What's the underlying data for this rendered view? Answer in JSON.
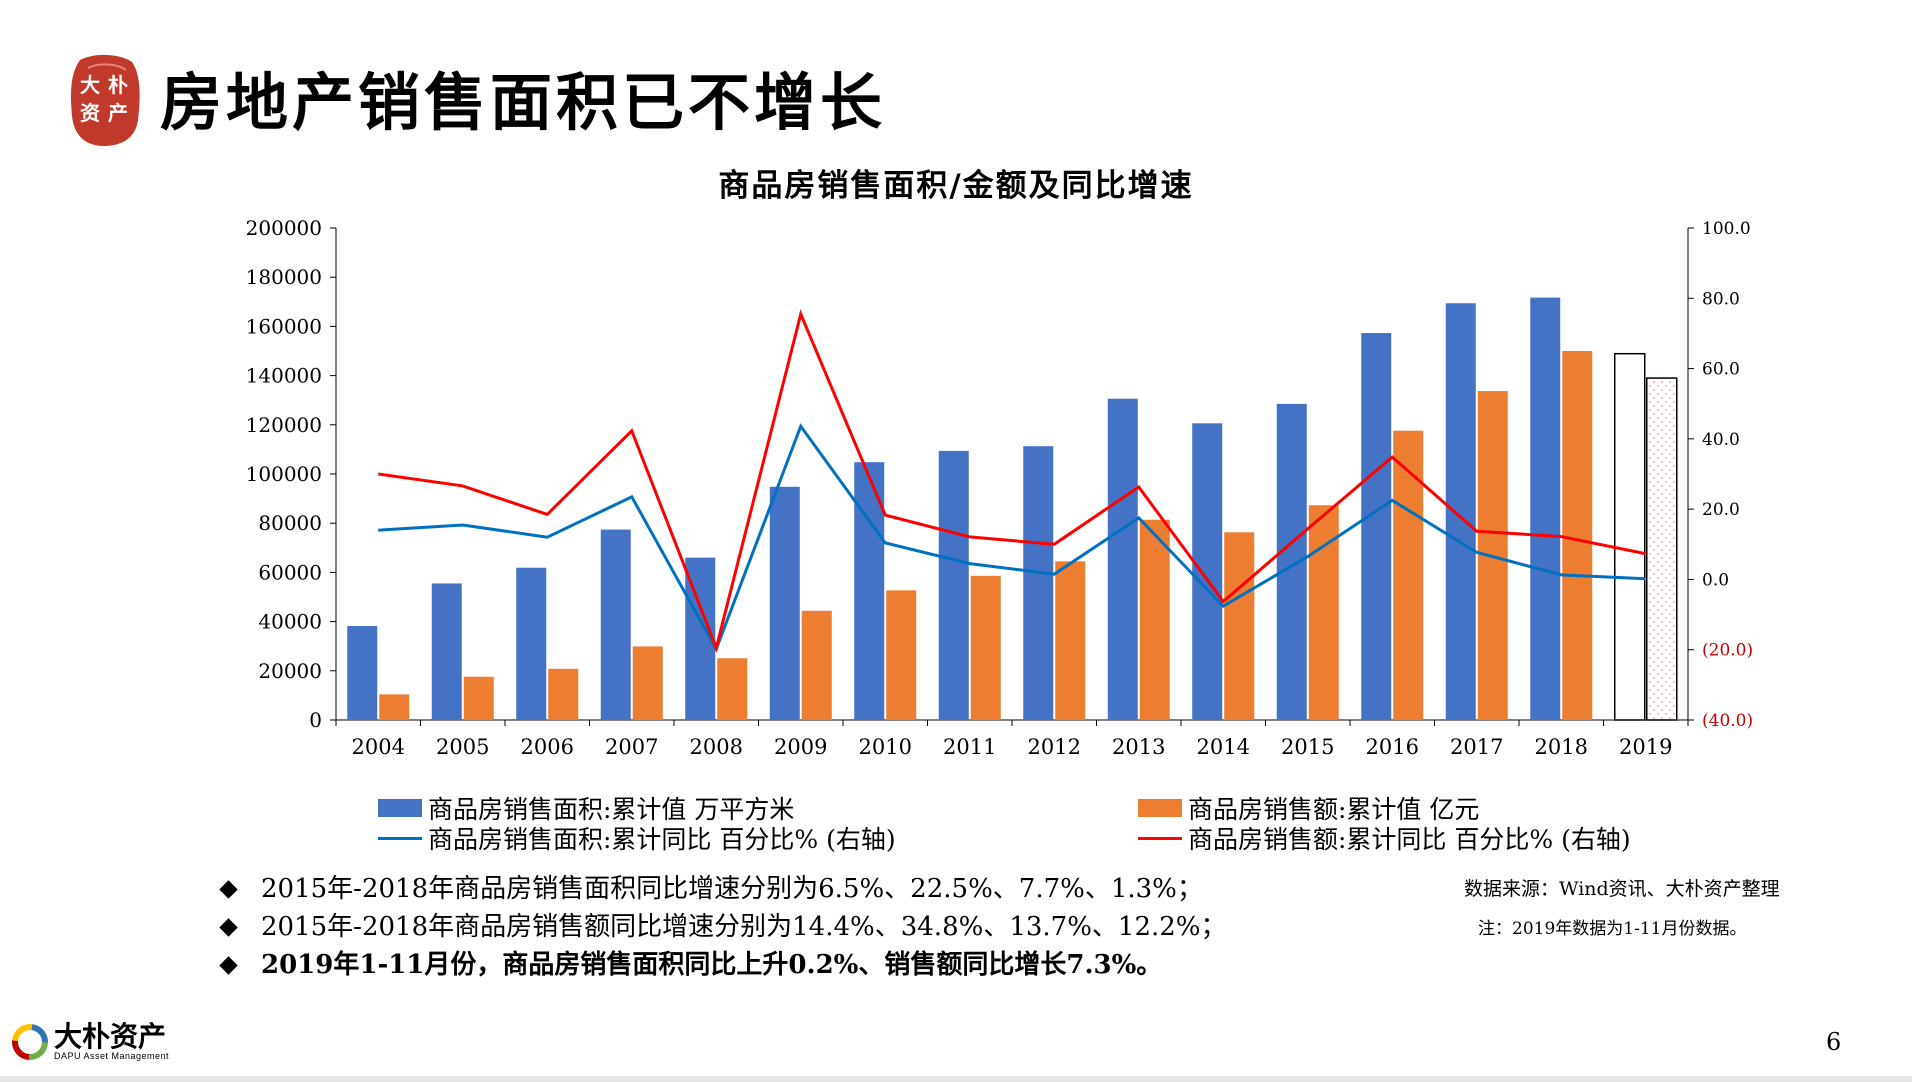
{
  "header": {
    "seal_text": [
      "大",
      "朴",
      "资",
      "产"
    ],
    "title": "房地产销售面积已不增长"
  },
  "chart_data": {
    "type": "bar",
    "title": "商品房销售面积/金额及同比增速",
    "categories": [
      "2004",
      "2005",
      "2006",
      "2007",
      "2008",
      "2009",
      "2010",
      "2011",
      "2012",
      "2013",
      "2014",
      "2015",
      "2016",
      "2017",
      "2018",
      "2019"
    ],
    "left_axis": {
      "ylim": [
        0,
        200000
      ],
      "ticks": [
        "0",
        "20000",
        "40000",
        "60000",
        "80000",
        "100000",
        "120000",
        "140000",
        "160000",
        "180000",
        "200000"
      ]
    },
    "right_axis": {
      "ylim": [
        -40,
        100
      ],
      "ticks": [
        "(40.0)",
        "(20.0)",
        "0.0",
        "20.0",
        "40.0",
        "60.0",
        "80.0",
        "100.0"
      ]
    },
    "series": [
      {
        "name": "商品房销售面积:累计值 万平方米",
        "kind": "bar",
        "axis": "left",
        "color": "#4472C4",
        "values": [
          38200,
          55500,
          61900,
          77400,
          66000,
          94800,
          104800,
          109400,
          111300,
          130600,
          120600,
          128500,
          157300,
          169400,
          171700,
          148900
        ]
      },
      {
        "name": "商品房销售额:累计值 亿元",
        "kind": "bar",
        "axis": "left",
        "color": "#ED7D31",
        "values": [
          10400,
          17600,
          20800,
          29900,
          25100,
          44400,
          52700,
          58600,
          64500,
          81400,
          76300,
          87300,
          117600,
          133700,
          150000,
          139000
        ]
      },
      {
        "name": "商品房销售面积:累计同比 百分比% (右轴)",
        "kind": "line",
        "axis": "right",
        "color": "#0070C0",
        "values": [
          14.0,
          15.5,
          12.0,
          23.5,
          -19.8,
          43.6,
          10.4,
          4.5,
          1.5,
          17.5,
          -7.6,
          6.5,
          22.5,
          7.7,
          1.3,
          0.2
        ]
      },
      {
        "name": "商品房销售额:累计同比 百分比% (右轴)",
        "kind": "line",
        "axis": "right",
        "color": "#FF0000",
        "values": [
          30.0,
          26.6,
          18.5,
          42.3,
          -19.5,
          75.5,
          18.3,
          12.1,
          10.0,
          26.3,
          -6.3,
          14.4,
          34.8,
          13.7,
          12.2,
          7.3
        ]
      }
    ]
  },
  "bullets": [
    "2015年-2018年商品房销售面积同比增速分别为6.5%、22.5%、7.7%、1.3%；",
    "2015年-2018年商品房销售额同比增速分别为14.4%、34.8%、13.7%、12.2%；",
    "2019年1-11月份，商品房销售面积同比上升0.2%、销售额同比增长7.3%。"
  ],
  "source": "数据来源：Wind资讯、大朴资产整理",
  "note": "注：2019年数据为1-11月份数据。",
  "footer": {
    "company": "大朴资产",
    "company_en": "DAPU Asset Management",
    "page_number": "6"
  }
}
